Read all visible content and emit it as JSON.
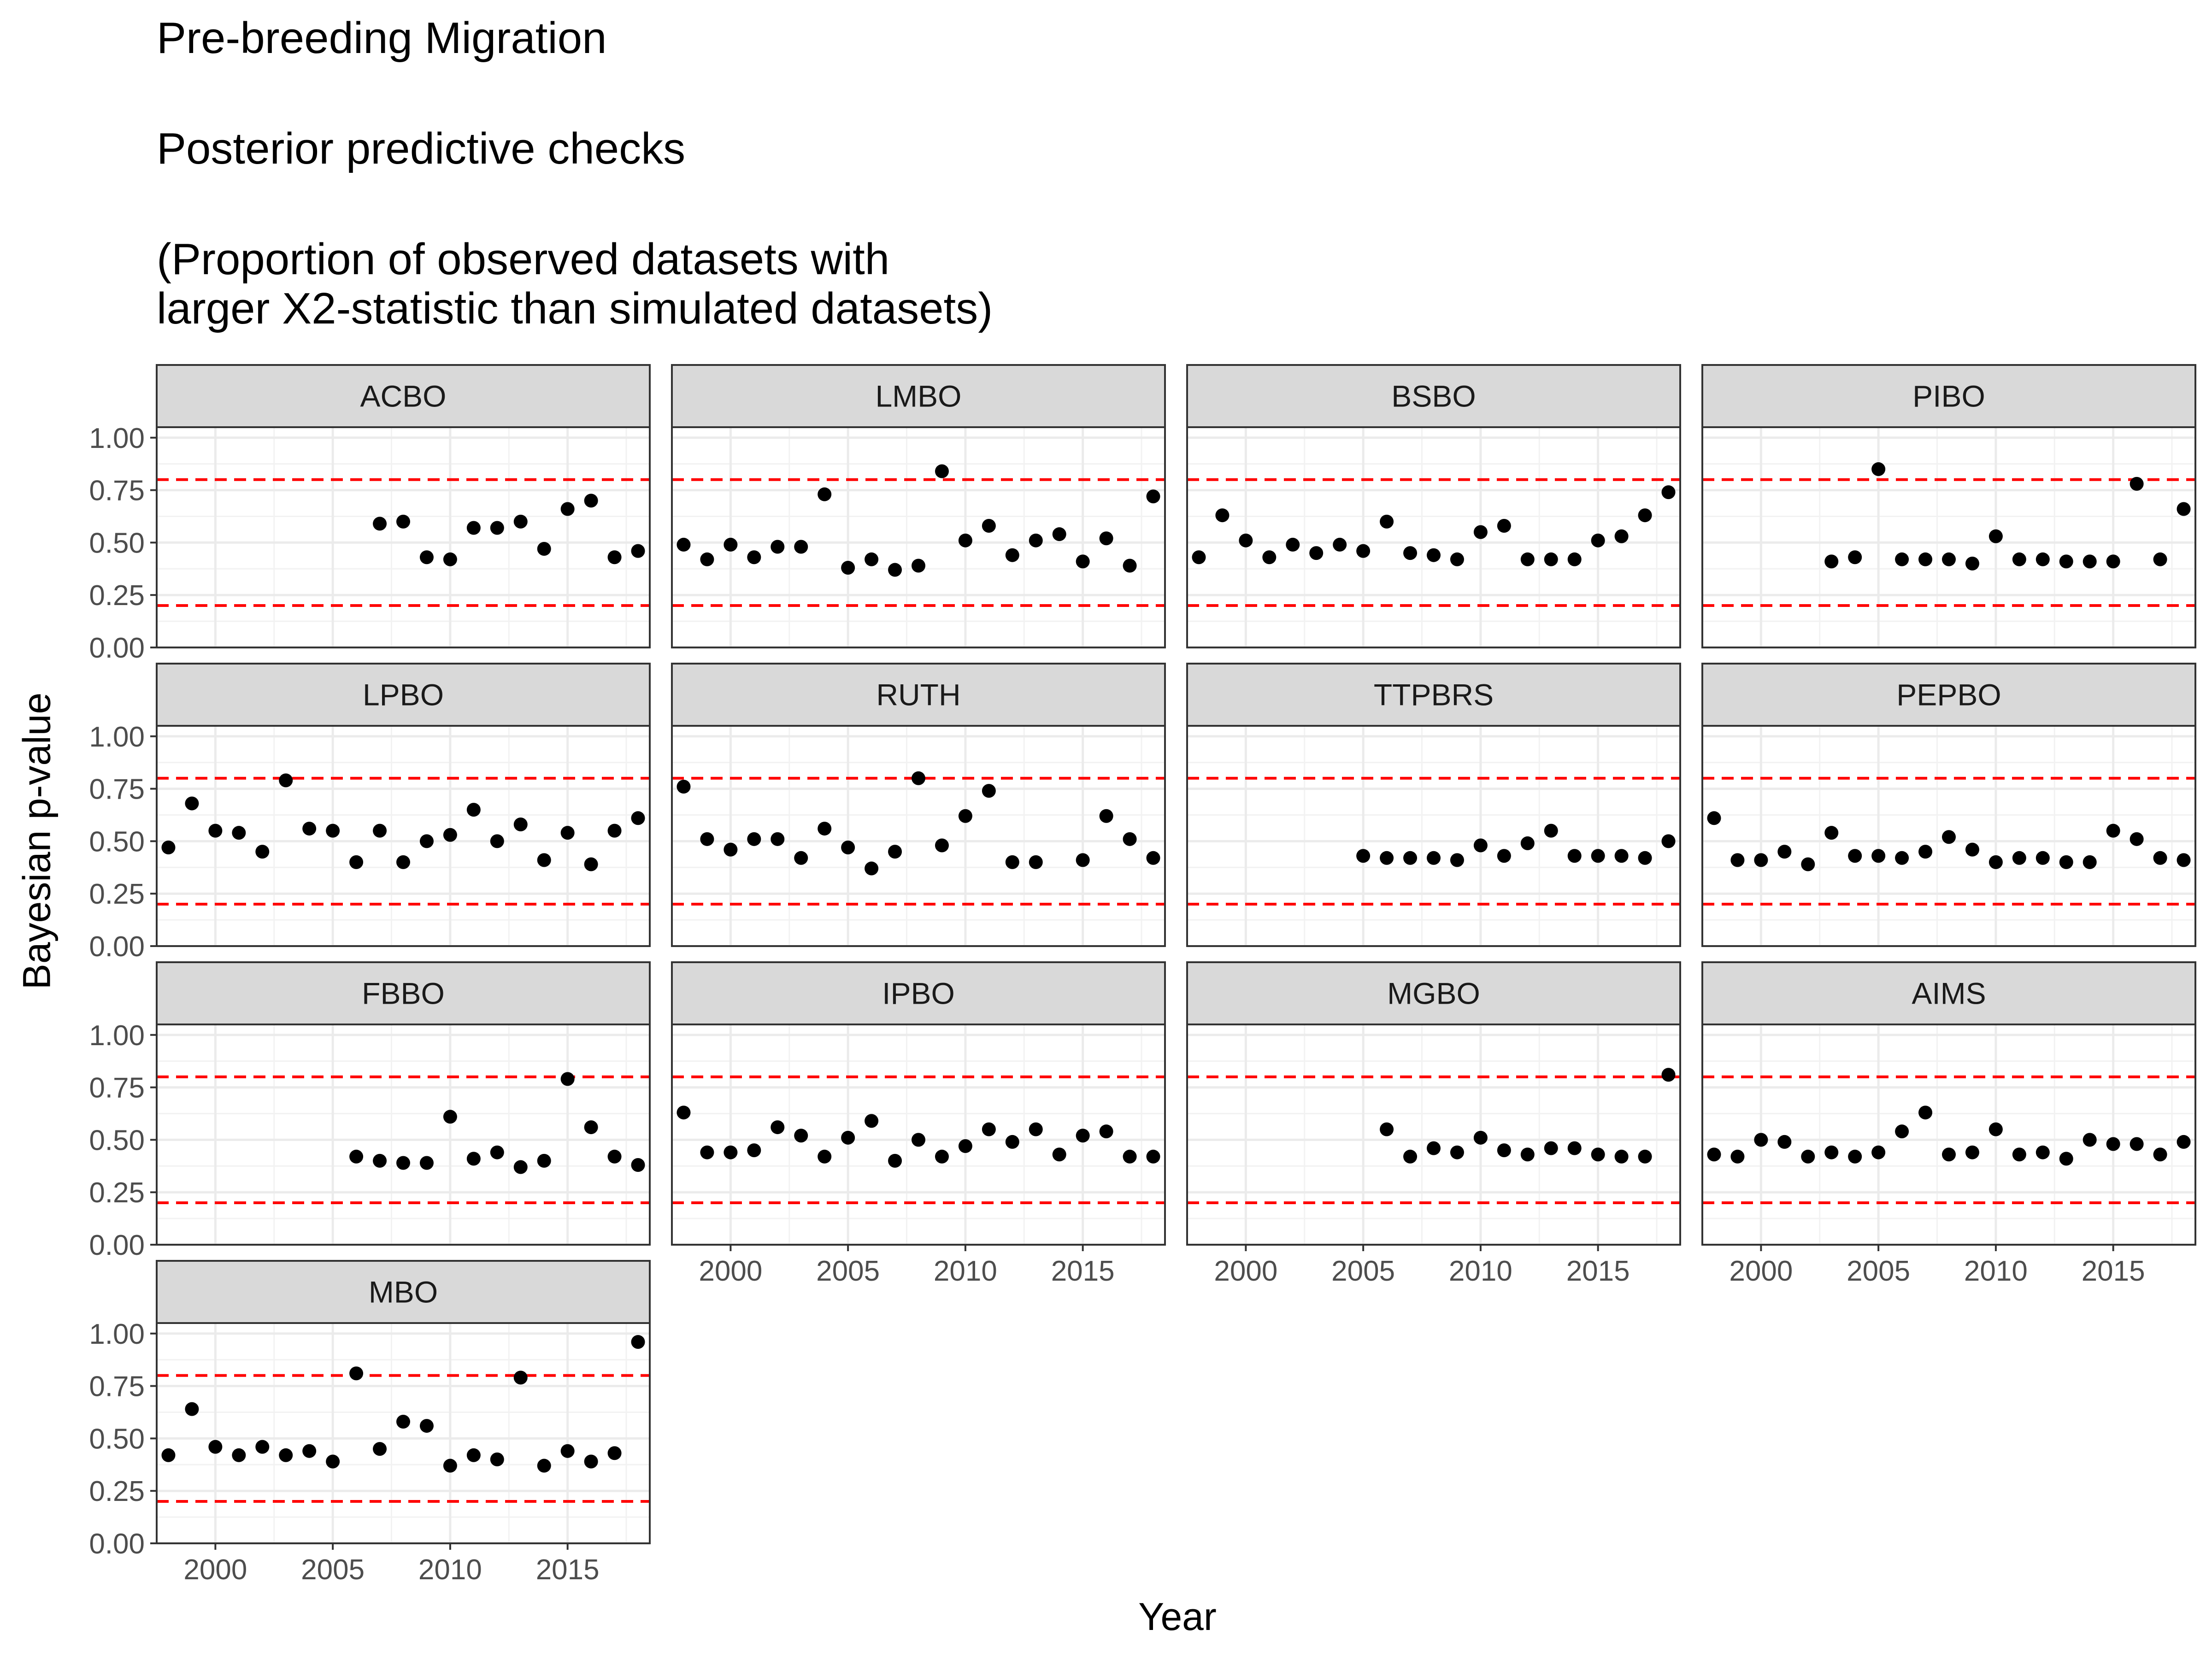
{
  "title": {
    "line1": "Pre-breeding Migration",
    "line2": "Posterior predictive checks",
    "line3": "(Proportion of observed datasets with",
    "line4": "larger X2-statistic than simulated datasets)"
  },
  "chart_data": {
    "type": "scatter",
    "facet_type": "small-multiples",
    "xlabel": "Year",
    "ylabel": "Bayesian p-value",
    "xlim": [
      1997.5,
      2018.5
    ],
    "ylim": [
      0,
      1.05
    ],
    "x_ticks": [
      2000,
      2005,
      2010,
      2015
    ],
    "y_ticks": [
      0.0,
      0.25,
      0.5,
      0.75,
      1.0
    ],
    "y_tick_labels": [
      "0.00",
      "0.25",
      "0.50",
      "0.75",
      "1.00"
    ],
    "reference_lines": [
      0.2,
      0.8
    ],
    "reference_line_color": "#ff0000",
    "point_color": "#000000",
    "grid": true,
    "panels": [
      {
        "name": "ACBO",
        "x": [
          2007,
          2008,
          2009,
          2010,
          2011,
          2012,
          2013,
          2014,
          2015,
          2016,
          2017,
          2018
        ],
        "y": [
          0.59,
          0.6,
          0.43,
          0.42,
          0.57,
          0.57,
          0.6,
          0.47,
          0.66,
          0.7,
          0.43,
          0.46
        ]
      },
      {
        "name": "LMBO",
        "x": [
          1998,
          1999,
          2000,
          2001,
          2002,
          2003,
          2004,
          2005,
          2006,
          2007,
          2008,
          2009,
          2010,
          2011,
          2012,
          2013,
          2014,
          2015,
          2016,
          2017,
          2018
        ],
        "y": [
          0.49,
          0.42,
          0.49,
          0.43,
          0.48,
          0.48,
          0.73,
          0.38,
          0.42,
          0.37,
          0.39,
          0.84,
          0.51,
          0.58,
          0.44,
          0.51,
          0.54,
          0.41,
          0.52,
          0.39,
          0.72
        ]
      },
      {
        "name": "BSBO",
        "x": [
          1998,
          1999,
          2000,
          2001,
          2002,
          2003,
          2004,
          2005,
          2006,
          2007,
          2008,
          2009,
          2010,
          2011,
          2012,
          2013,
          2014,
          2015,
          2016,
          2017,
          2018
        ],
        "y": [
          0.43,
          0.63,
          0.51,
          0.43,
          0.49,
          0.45,
          0.49,
          0.46,
          0.6,
          0.45,
          0.44,
          0.42,
          0.55,
          0.58,
          0.42,
          0.42,
          0.42,
          0.51,
          0.53,
          0.63,
          0.74
        ]
      },
      {
        "name": "PIBO",
        "x": [
          2003,
          2004,
          2005,
          2006,
          2007,
          2008,
          2009,
          2010,
          2011,
          2012,
          2013,
          2014,
          2015,
          2016,
          2017,
          2018
        ],
        "y": [
          0.41,
          0.43,
          0.85,
          0.42,
          0.42,
          0.42,
          0.4,
          0.53,
          0.42,
          0.42,
          0.41,
          0.41,
          0.41,
          0.78,
          0.42,
          0.66
        ]
      },
      {
        "name": "LPBO",
        "x": [
          1998,
          1999,
          2000,
          2001,
          2002,
          2003,
          2004,
          2005,
          2006,
          2007,
          2008,
          2009,
          2010,
          2011,
          2012,
          2013,
          2014,
          2015,
          2016,
          2017,
          2018
        ],
        "y": [
          0.47,
          0.68,
          0.55,
          0.54,
          0.45,
          0.79,
          0.56,
          0.55,
          0.4,
          0.55,
          0.4,
          0.5,
          0.53,
          0.65,
          0.5,
          0.58,
          0.41,
          0.54,
          0.39,
          0.55,
          0.61
        ]
      },
      {
        "name": "RUTH",
        "x": [
          1998,
          1999,
          2000,
          2001,
          2002,
          2003,
          2004,
          2005,
          2006,
          2007,
          2008,
          2009,
          2010,
          2011,
          2012,
          2013,
          2015,
          2016,
          2017,
          2018
        ],
        "y": [
          0.76,
          0.51,
          0.46,
          0.51,
          0.51,
          0.42,
          0.56,
          0.47,
          0.37,
          0.45,
          0.8,
          0.48,
          0.62,
          0.74,
          0.4,
          0.4,
          0.41,
          0.62,
          0.51,
          0.42
        ]
      },
      {
        "name": "TTPBRS",
        "x": [
          2005,
          2006,
          2007,
          2008,
          2009,
          2010,
          2011,
          2012,
          2013,
          2014,
          2015,
          2016,
          2017,
          2018
        ],
        "y": [
          0.43,
          0.42,
          0.42,
          0.42,
          0.41,
          0.48,
          0.43,
          0.49,
          0.55,
          0.43,
          0.43,
          0.43,
          0.42,
          0.5
        ]
      },
      {
        "name": "PEPBO",
        "x": [
          1998,
          1999,
          2000,
          2001,
          2002,
          2003,
          2004,
          2005,
          2006,
          2007,
          2008,
          2009,
          2010,
          2011,
          2012,
          2013,
          2014,
          2015,
          2016,
          2017,
          2018
        ],
        "y": [
          0.61,
          0.41,
          0.41,
          0.45,
          0.39,
          0.54,
          0.43,
          0.43,
          0.42,
          0.45,
          0.52,
          0.46,
          0.4,
          0.42,
          0.42,
          0.4,
          0.4,
          0.55,
          0.51,
          0.42,
          0.41
        ]
      },
      {
        "name": "FBBO",
        "x": [
          2006,
          2007,
          2008,
          2009,
          2010,
          2011,
          2012,
          2013,
          2014,
          2015,
          2016,
          2017,
          2018
        ],
        "y": [
          0.42,
          0.4,
          0.39,
          0.39,
          0.61,
          0.41,
          0.44,
          0.37,
          0.4,
          0.79,
          0.56,
          0.42,
          0.38
        ]
      },
      {
        "name": "IPBO",
        "x": [
          1998,
          1999,
          2000,
          2001,
          2002,
          2003,
          2004,
          2005,
          2006,
          2007,
          2008,
          2009,
          2010,
          2011,
          2012,
          2013,
          2014,
          2015,
          2016,
          2017,
          2018
        ],
        "y": [
          0.63,
          0.44,
          0.44,
          0.45,
          0.56,
          0.52,
          0.42,
          0.51,
          0.59,
          0.4,
          0.5,
          0.42,
          0.47,
          0.55,
          0.49,
          0.55,
          0.43,
          0.52,
          0.54,
          0.42,
          0.42
        ]
      },
      {
        "name": "MGBO",
        "x": [
          2006,
          2007,
          2008,
          2009,
          2010,
          2011,
          2012,
          2013,
          2014,
          2015,
          2016,
          2017,
          2018
        ],
        "y": [
          0.55,
          0.42,
          0.46,
          0.44,
          0.51,
          0.45,
          0.43,
          0.46,
          0.46,
          0.43,
          0.42,
          0.42,
          0.81
        ]
      },
      {
        "name": "AIMS",
        "x": [
          1998,
          1999,
          2000,
          2001,
          2002,
          2003,
          2004,
          2005,
          2006,
          2007,
          2008,
          2009,
          2010,
          2011,
          2012,
          2013,
          2014,
          2015,
          2016,
          2017,
          2018
        ],
        "y": [
          0.43,
          0.42,
          0.5,
          0.49,
          0.42,
          0.44,
          0.42,
          0.44,
          0.54,
          0.63,
          0.43,
          0.44,
          0.55,
          0.43,
          0.44,
          0.41,
          0.5,
          0.48,
          0.48,
          0.43,
          0.49
        ]
      },
      {
        "name": "MBO",
        "x": [
          1998,
          1999,
          2000,
          2001,
          2002,
          2003,
          2004,
          2005,
          2006,
          2007,
          2008,
          2009,
          2010,
          2011,
          2012,
          2013,
          2014,
          2015,
          2016,
          2017,
          2018
        ],
        "y": [
          0.42,
          0.64,
          0.46,
          0.42,
          0.46,
          0.42,
          0.44,
          0.39,
          0.81,
          0.45,
          0.58,
          0.56,
          0.37,
          0.42,
          0.4,
          0.79,
          0.37,
          0.44,
          0.39,
          0.43,
          0.96
        ]
      }
    ]
  }
}
